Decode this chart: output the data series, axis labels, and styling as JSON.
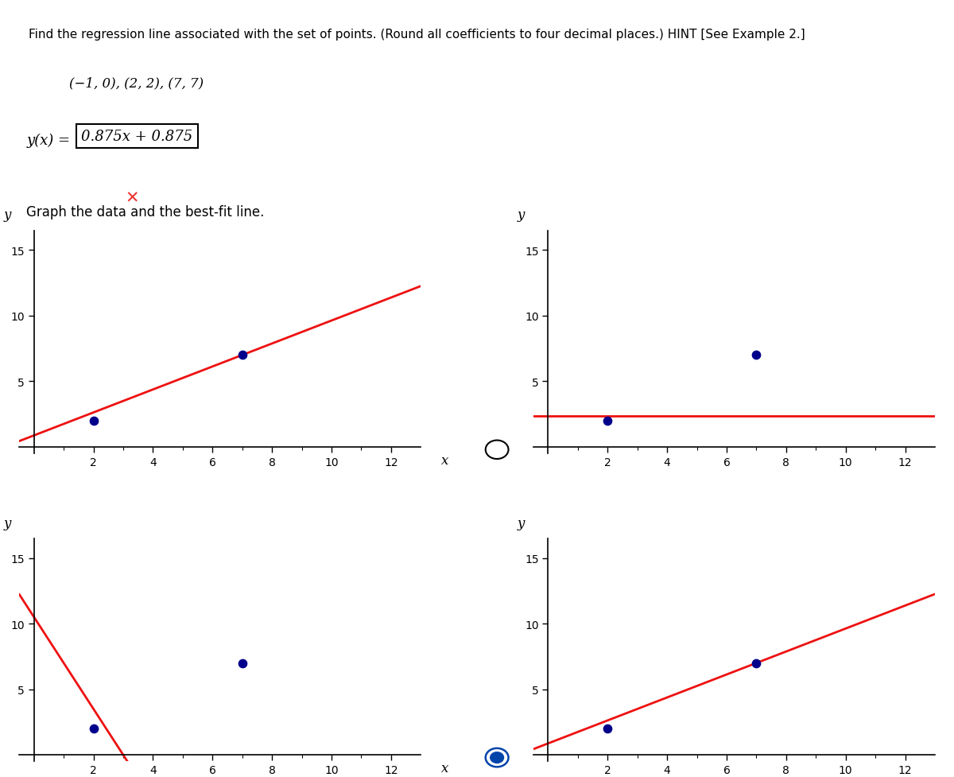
{
  "title_line1": "Find the regression line associated with the set of points. (Round all coefficients to four decimal places.) HINT [See Example 2.]",
  "title_line2": "(−1, 0), (2, 2), (7, 7)",
  "formula_label": "y(x) =",
  "formula_box": "0.875x + 0.875",
  "graph_label": "Graph the data and the best-fit line.",
  "data_points": [
    [
      -1,
      0
    ],
    [
      2,
      2
    ],
    [
      7,
      7
    ]
  ],
  "xlim": [
    -0.5,
    13.0
  ],
  "ylim": [
    -0.5,
    16.5
  ],
  "xticks_major": [
    2,
    4,
    6,
    8,
    10,
    12
  ],
  "xticks_minor": [
    1,
    3,
    5,
    7,
    9,
    11
  ],
  "yticks": [
    5,
    10,
    15
  ],
  "xlabel": "x",
  "ylabel": "y",
  "line_color": "#EE1111",
  "point_color": "#00008B",
  "point_size": 55,
  "bg_color": "#FFFFFF",
  "graphs": [
    {
      "slope": 0.875,
      "intercept": 0.875,
      "radio_filled": false,
      "correct": true
    },
    {
      "slope": 0.0,
      "intercept": 2.333,
      "radio_filled": false,
      "correct": false
    },
    {
      "slope": -3.5,
      "intercept": 10.5,
      "radio_filled": false,
      "correct": false
    },
    {
      "slope": 0.875,
      "intercept": 0.875,
      "radio_filled": true,
      "correct": true
    }
  ]
}
